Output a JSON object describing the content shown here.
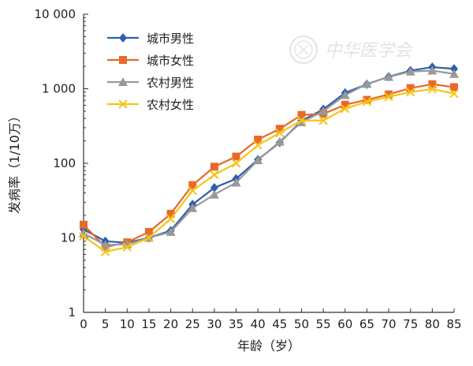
{
  "chart_data": {
    "type": "line",
    "title": "",
    "xlabel": "年龄（岁）",
    "ylabel": "发病率（1/10万）",
    "yscale": "log",
    "ylim": [
      1,
      10000
    ],
    "yticks": [
      1,
      10,
      100,
      1000,
      10000
    ],
    "ytick_labels": [
      "1",
      "10",
      "100",
      "1 000",
      "10 000"
    ],
    "x": [
      0,
      5,
      10,
      15,
      20,
      25,
      30,
      35,
      40,
      45,
      50,
      55,
      60,
      65,
      70,
      75,
      80,
      85
    ],
    "xtick_labels": [
      "0",
      "5",
      "10",
      "15",
      "20",
      "25",
      "30",
      "35",
      "40",
      "45",
      "50",
      "55",
      "60",
      "65",
      "70",
      "75",
      "80",
      "85"
    ],
    "xlim": [
      0,
      85
    ],
    "grid": false,
    "legend_position": "top-left",
    "series": [
      {
        "name": "城市男性",
        "color": "#2e5fad",
        "marker": "diamond",
        "values": [
          13,
          9.0,
          8.6,
          10,
          12.5,
          28,
          47,
          62,
          112,
          190,
          370,
          530,
          880,
          1150,
          1450,
          1750,
          1950,
          1850
        ]
      },
      {
        "name": "城市女性",
        "color": "#e8692a",
        "marker": "square",
        "values": [
          15,
          7.5,
          8.7,
          12,
          21,
          51,
          90,
          123,
          208,
          290,
          445,
          460,
          610,
          710,
          840,
          1020,
          1150,
          1050
        ]
      },
      {
        "name": "农村男性",
        "color": "#999999",
        "marker": "triangle",
        "values": [
          11.5,
          8.0,
          8.2,
          10,
          12,
          25,
          38,
          55,
          110,
          195,
          355,
          500,
          820,
          1160,
          1440,
          1700,
          1750,
          1580
        ]
      },
      {
        "name": "农村女性",
        "color": "#f5c518",
        "marker": "x",
        "values": [
          10.5,
          6.5,
          7.5,
          10,
          18,
          43,
          70,
          100,
          175,
          255,
          375,
          375,
          540,
          670,
          780,
          900,
          990,
          860
        ]
      }
    ]
  },
  "watermark": {
    "text": "中华医学会"
  }
}
